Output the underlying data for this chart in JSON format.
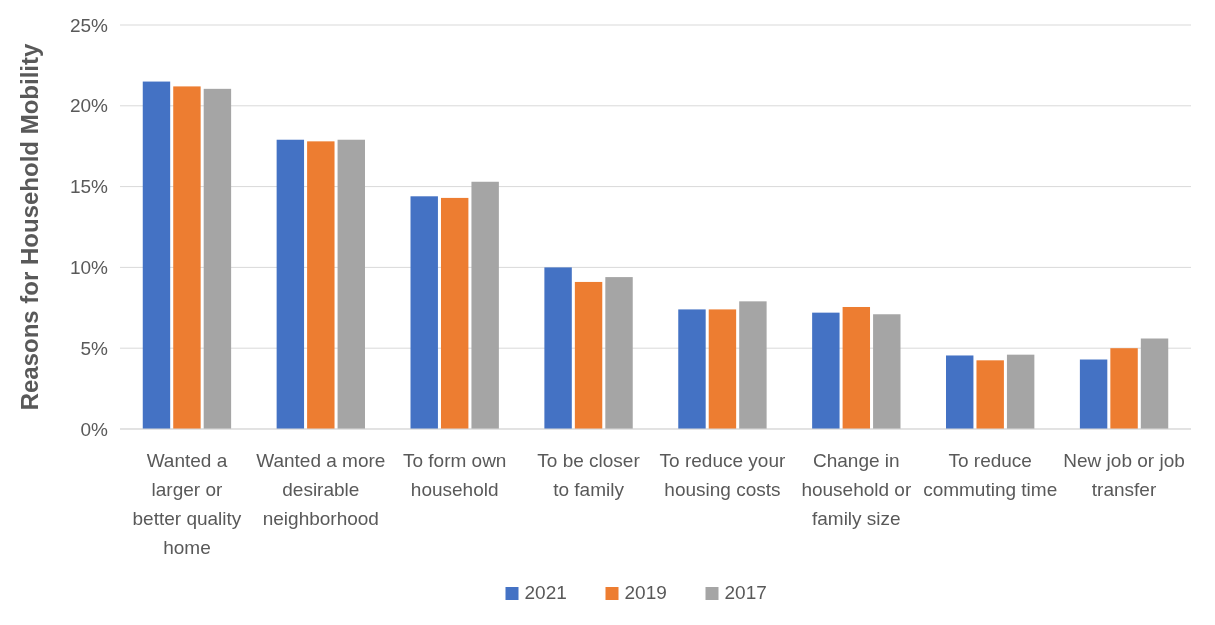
{
  "chart_data": {
    "type": "bar",
    "ylabel": "Reasons for Household Mobility",
    "categories": [
      "Wanted a larger or better quality home",
      "Wanted a more desirable neighborhood",
      "To form own household",
      "To be closer to family",
      "To reduce your housing costs",
      "Change in household or family size",
      "To reduce commuting time",
      "New job or job transfer"
    ],
    "series": [
      {
        "name": "2021",
        "color": "#4472c4",
        "values": [
          21.5,
          17.9,
          14.4,
          10.0,
          7.4,
          7.2,
          4.55,
          4.3
        ]
      },
      {
        "name": "2019",
        "color": "#ed7d31",
        "values": [
          21.2,
          17.8,
          14.3,
          9.1,
          7.4,
          7.55,
          4.25,
          5.0
        ]
      },
      {
        "name": "2017",
        "color": "#a5a5a5",
        "values": [
          21.05,
          17.9,
          15.3,
          9.4,
          7.9,
          7.1,
          4.6,
          5.6
        ]
      }
    ],
    "ylim": [
      0,
      25
    ],
    "yticks": [
      {
        "value": 0,
        "label": "0%"
      },
      {
        "value": 5,
        "label": "5%"
      },
      {
        "value": 10,
        "label": "10%"
      },
      {
        "value": 15,
        "label": "15%"
      },
      {
        "value": 20,
        "label": "20%"
      },
      {
        "value": 25,
        "label": "25%"
      }
    ],
    "grid": "y",
    "legend": "bottom"
  }
}
